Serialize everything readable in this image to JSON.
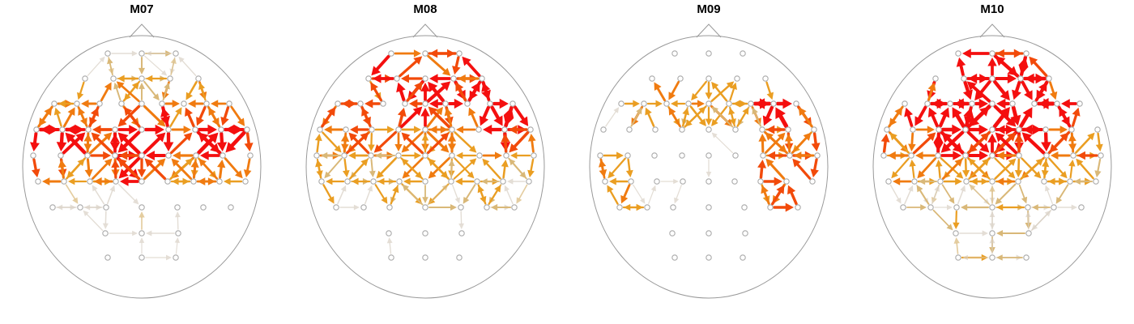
{
  "panels": [
    {
      "title": "M07"
    },
    {
      "title": "M08"
    },
    {
      "title": "M09"
    },
    {
      "title": "M10"
    }
  ]
}
